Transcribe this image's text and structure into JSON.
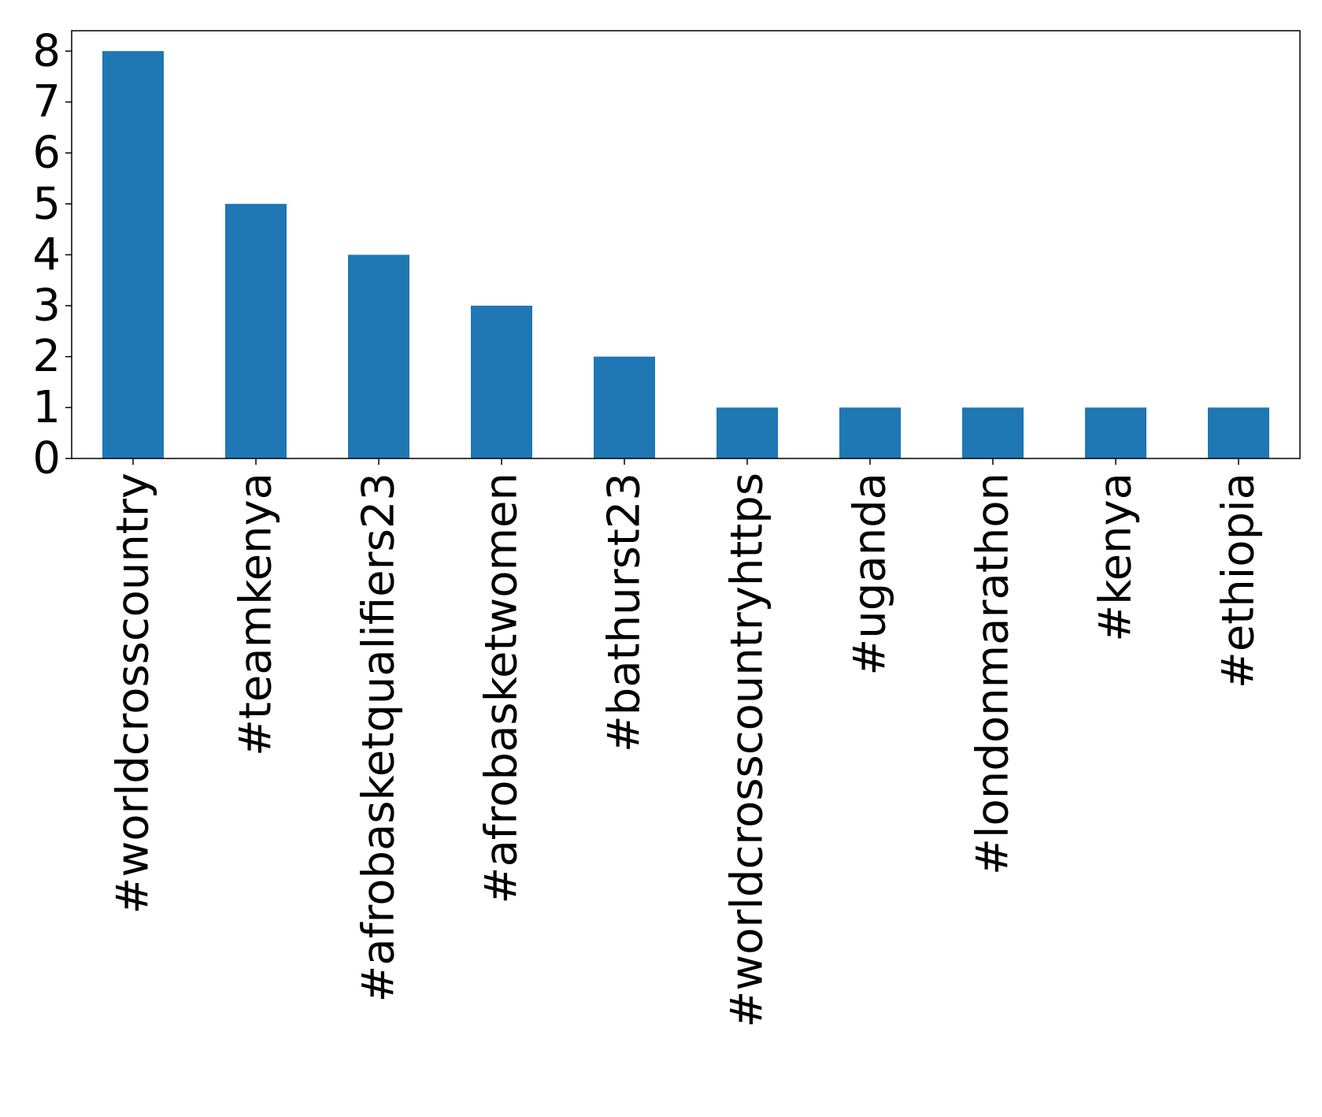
{
  "chart_data": {
    "type": "bar",
    "title": "",
    "xlabel": "",
    "ylabel": "",
    "categories": [
      "#worldcrosscountry",
      "#teamkenya",
      "#afrobasketqualifiers23",
      "#afrobasketwomen",
      "#bathurst23",
      "#worldcrosscountryhttps",
      "#uganda",
      "#londonmarathon",
      "#kenya",
      "#ethiopia"
    ],
    "values": [
      8,
      5,
      4,
      3,
      2,
      1,
      1,
      1,
      1,
      1
    ],
    "ylim": [
      0,
      8.4
    ],
    "yticks": [
      0,
      1,
      2,
      3,
      4,
      5,
      6,
      7,
      8
    ],
    "grid": false,
    "legend": "none",
    "bar_color": "#1f77b4"
  }
}
